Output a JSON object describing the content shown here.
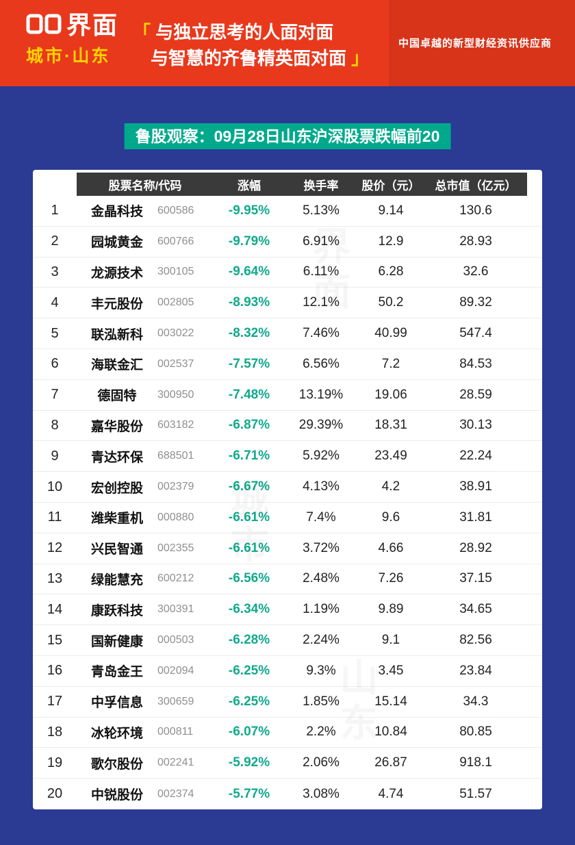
{
  "header": {
    "brand": "界面",
    "brand_sub": "城市·山东",
    "slogan_bracket_open": "「",
    "slogan_line1": "与独立思考的人面对面",
    "slogan_line2": "与智慧的齐鲁精英面对面",
    "slogan_bracket_close": "」",
    "tagline": "中国卓越的新型财经资讯供应商"
  },
  "chart_data": {
    "type": "table",
    "title": "鲁股观察：09月28日山东沪深股票跌幅前20",
    "columns": [
      "股票名称/代码",
      "涨幅",
      "换手率",
      "股价（元）",
      "总市值（亿元）"
    ],
    "rows": [
      {
        "rank": "1",
        "name": "金晶科技",
        "code": "600586",
        "change": "-9.95%",
        "turnover": "5.13%",
        "price": "9.14",
        "market_cap": "130.6"
      },
      {
        "rank": "2",
        "name": "园城黄金",
        "code": "600766",
        "change": "-9.79%",
        "turnover": "6.91%",
        "price": "12.9",
        "market_cap": "28.93"
      },
      {
        "rank": "3",
        "name": "龙源技术",
        "code": "300105",
        "change": "-9.64%",
        "turnover": "6.11%",
        "price": "6.28",
        "market_cap": "32.6"
      },
      {
        "rank": "4",
        "name": "丰元股份",
        "code": "002805",
        "change": "-8.93%",
        "turnover": "12.1%",
        "price": "50.2",
        "market_cap": "89.32"
      },
      {
        "rank": "5",
        "name": "联泓新科",
        "code": "003022",
        "change": "-8.32%",
        "turnover": "7.46%",
        "price": "40.99",
        "market_cap": "547.4"
      },
      {
        "rank": "6",
        "name": "海联金汇",
        "code": "002537",
        "change": "-7.57%",
        "turnover": "6.56%",
        "price": "7.2",
        "market_cap": "84.53"
      },
      {
        "rank": "7",
        "name": "德固特",
        "code": "300950",
        "change": "-7.48%",
        "turnover": "13.19%",
        "price": "19.06",
        "market_cap": "28.59"
      },
      {
        "rank": "8",
        "name": "嘉华股份",
        "code": "603182",
        "change": "-6.87%",
        "turnover": "29.39%",
        "price": "18.31",
        "market_cap": "30.13"
      },
      {
        "rank": "9",
        "name": "青达环保",
        "code": "688501",
        "change": "-6.71%",
        "turnover": "5.92%",
        "price": "23.49",
        "market_cap": "22.24"
      },
      {
        "rank": "10",
        "name": "宏创控股",
        "code": "002379",
        "change": "-6.67%",
        "turnover": "4.13%",
        "price": "4.2",
        "market_cap": "38.91"
      },
      {
        "rank": "11",
        "name": "潍柴重机",
        "code": "000880",
        "change": "-6.61%",
        "turnover": "7.4%",
        "price": "9.6",
        "market_cap": "31.81"
      },
      {
        "rank": "12",
        "name": "兴民智通",
        "code": "002355",
        "change": "-6.61%",
        "turnover": "3.72%",
        "price": "4.66",
        "market_cap": "28.92"
      },
      {
        "rank": "13",
        "name": "绿能慧充",
        "code": "600212",
        "change": "-6.56%",
        "turnover": "2.48%",
        "price": "7.26",
        "market_cap": "37.15"
      },
      {
        "rank": "14",
        "name": "康跃科技",
        "code": "300391",
        "change": "-6.34%",
        "turnover": "1.19%",
        "price": "9.89",
        "market_cap": "34.65"
      },
      {
        "rank": "15",
        "name": "国新健康",
        "code": "000503",
        "change": "-6.28%",
        "turnover": "2.24%",
        "price": "9.1",
        "market_cap": "82.56"
      },
      {
        "rank": "16",
        "name": "青岛金王",
        "code": "002094",
        "change": "-6.25%",
        "turnover": "9.3%",
        "price": "3.45",
        "market_cap": "23.84"
      },
      {
        "rank": "17",
        "name": "中孚信息",
        "code": "300659",
        "change": "-6.25%",
        "turnover": "1.85%",
        "price": "15.14",
        "market_cap": "34.3"
      },
      {
        "rank": "18",
        "name": "冰轮环境",
        "code": "000811",
        "change": "-6.07%",
        "turnover": "2.2%",
        "price": "10.84",
        "market_cap": "80.85"
      },
      {
        "rank": "19",
        "name": "歌尔股份",
        "code": "002241",
        "change": "-5.92%",
        "turnover": "2.06%",
        "price": "26.87",
        "market_cap": "918.1"
      },
      {
        "rank": "20",
        "name": "中锐股份",
        "code": "002374",
        "change": "-5.77%",
        "turnover": "3.08%",
        "price": "4.74",
        "market_cap": "51.57"
      }
    ]
  },
  "colors": {
    "header_red": "#e8391d",
    "background_blue": "#2b3a92",
    "banner_green": "#00a98c",
    "change_green": "#10a98c",
    "table_header_bg": "#3a3a3a",
    "accent_yellow": "#ffd400"
  },
  "watermarks": [
    "界面",
    "城市",
    "山东",
    "界面",
    "城市",
    "山东"
  ]
}
